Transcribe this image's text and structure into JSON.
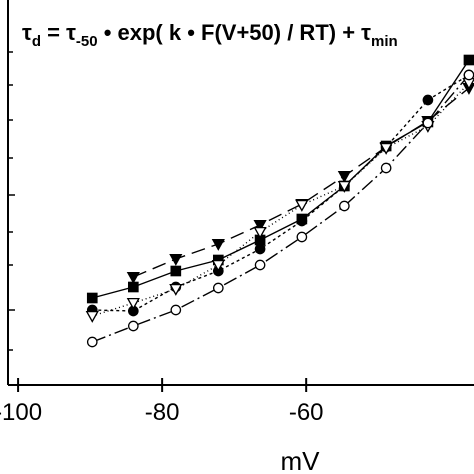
{
  "chart_data": {
    "type": "line",
    "title_parts": [
      "τ",
      "d",
      " = τ",
      "-50",
      " • exp( k • F(V+50) / RT) + τ",
      "min"
    ],
    "xlabel": "mV",
    "xlim": [
      -101.4,
      -36.7
    ],
    "xticks": [
      -100,
      -80,
      -60
    ],
    "ylim": [
      0,
      385
    ],
    "series": [
      {
        "color": "#000000",
        "marker": "triangle-down-filled",
        "dash": "14,7",
        "x": [
          -84.0,
          -78.1,
          -72.2,
          -66.4,
          -60.6,
          -54.7,
          -48.9,
          -43.1,
          -37.4
        ],
        "values": [
          108,
          126,
          141,
          160,
          181,
          209,
          238,
          264,
          297
        ]
      },
      {
        "color": "#000000",
        "marker": "square-filled",
        "dash": "none",
        "x": [
          -89.7,
          -84.0,
          -78.1,
          -72.2,
          -66.4,
          -60.6,
          -54.7,
          -48.9,
          -43.1,
          -37.4
        ],
        "values": [
          87,
          98,
          114,
          125,
          145,
          166,
          199,
          239,
          263,
          325
        ]
      },
      {
        "color": "#000000",
        "marker": "circle-filled",
        "dash": "3,3",
        "x": [
          -89.7,
          -84.0,
          -78.1,
          -72.2,
          -66.4,
          -60.6,
          -54.7,
          -48.9,
          -43.1,
          -37.4
        ],
        "values": [
          75,
          74,
          98,
          114,
          136,
          164,
          199,
          238,
          285,
          310
        ]
      },
      {
        "color": "#000000",
        "marker": "triangle-down-open",
        "dash": "1,3",
        "x": [
          -89.7,
          -84.0,
          -78.1,
          -72.2,
          -66.4,
          -60.6,
          -54.7,
          -48.9,
          -43.1,
          -37.4
        ],
        "values": [
          69,
          82,
          96,
          120,
          153,
          180,
          199,
          237,
          259,
          302
        ]
      },
      {
        "color": "#000000",
        "marker": "circle-open",
        "dash": "14,4,2,4",
        "x": [
          -89.7,
          -84.0,
          -78.1,
          -72.2,
          -66.4,
          -60.6,
          -54.7,
          -48.9,
          -43.1,
          -37.4
        ],
        "values": [
          43,
          59,
          75,
          97,
          120,
          148,
          179,
          217,
          262,
          310
        ]
      }
    ]
  }
}
